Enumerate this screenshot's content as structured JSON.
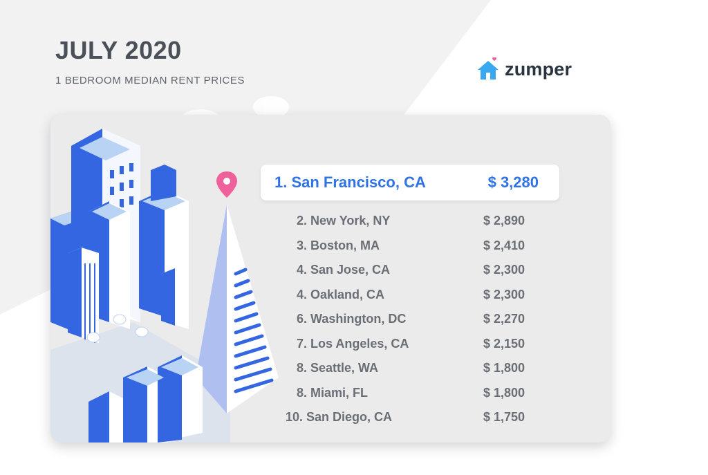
{
  "header": {
    "title": "JULY 2020",
    "subtitle": "1 BEDROOM MEDIAN RENT PRICES"
  },
  "brand": {
    "name": "zumper",
    "logo_icon": "house-heart-icon",
    "color": "#38a9f0"
  },
  "ranking": {
    "top": {
      "city": "1. San Francisco, CA",
      "price": "$ 3,280"
    },
    "items": [
      {
        "city": "2. New York, NY",
        "price": "$ 2,890"
      },
      {
        "city": "3. Boston, MA",
        "price": "$ 2,410"
      },
      {
        "city": "4. San Jose, CA",
        "price": "$ 2,300"
      },
      {
        "city": "4. Oakland, CA",
        "price": "$ 2,300"
      },
      {
        "city": "6. Washington, DC",
        "price": "$ 2,270"
      },
      {
        "city": "7. Los Angeles, CA",
        "price": "$ 2,150"
      },
      {
        "city": "8. Seattle, WA",
        "price": "$ 1,800"
      },
      {
        "city": "8. Miami, FL",
        "price": "$ 1,800"
      },
      {
        "city": "10. San Diego, CA",
        "price": "$ 1,750"
      }
    ]
  },
  "colors": {
    "accent": "#2f73e6",
    "pin": "#f0609b",
    "building": "#3366e0"
  }
}
